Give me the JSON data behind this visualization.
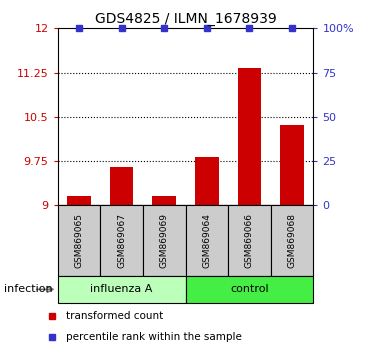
{
  "title": "GDS4825 / ILMN_1678939",
  "samples": [
    "GSM869065",
    "GSM869067",
    "GSM869069",
    "GSM869064",
    "GSM869066",
    "GSM869068"
  ],
  "bar_values": [
    9.15,
    9.65,
    9.15,
    9.82,
    11.32,
    10.36
  ],
  "percentile_values": [
    100,
    100,
    100,
    100,
    100,
    100
  ],
  "bar_color": "#cc0000",
  "percentile_color": "#3333cc",
  "ymin": 9.0,
  "ymax": 12.0,
  "yticks": [
    9.0,
    9.75,
    10.5,
    11.25,
    12.0
  ],
  "ytick_labels": [
    "9",
    "9.75",
    "10.5",
    "11.25",
    "12"
  ],
  "right_yticks": [
    0,
    25,
    50,
    75,
    100
  ],
  "right_ytick_labels": [
    "0",
    "25",
    "50",
    "75",
    "100%"
  ],
  "legend_bar": "transformed count",
  "legend_percentile": "percentile rank within the sample",
  "bg_color": "#ffffff",
  "sample_box_color": "#cccccc",
  "influenza_color": "#bbffbb",
  "control_color": "#44ee44",
  "infection_label": "infection"
}
